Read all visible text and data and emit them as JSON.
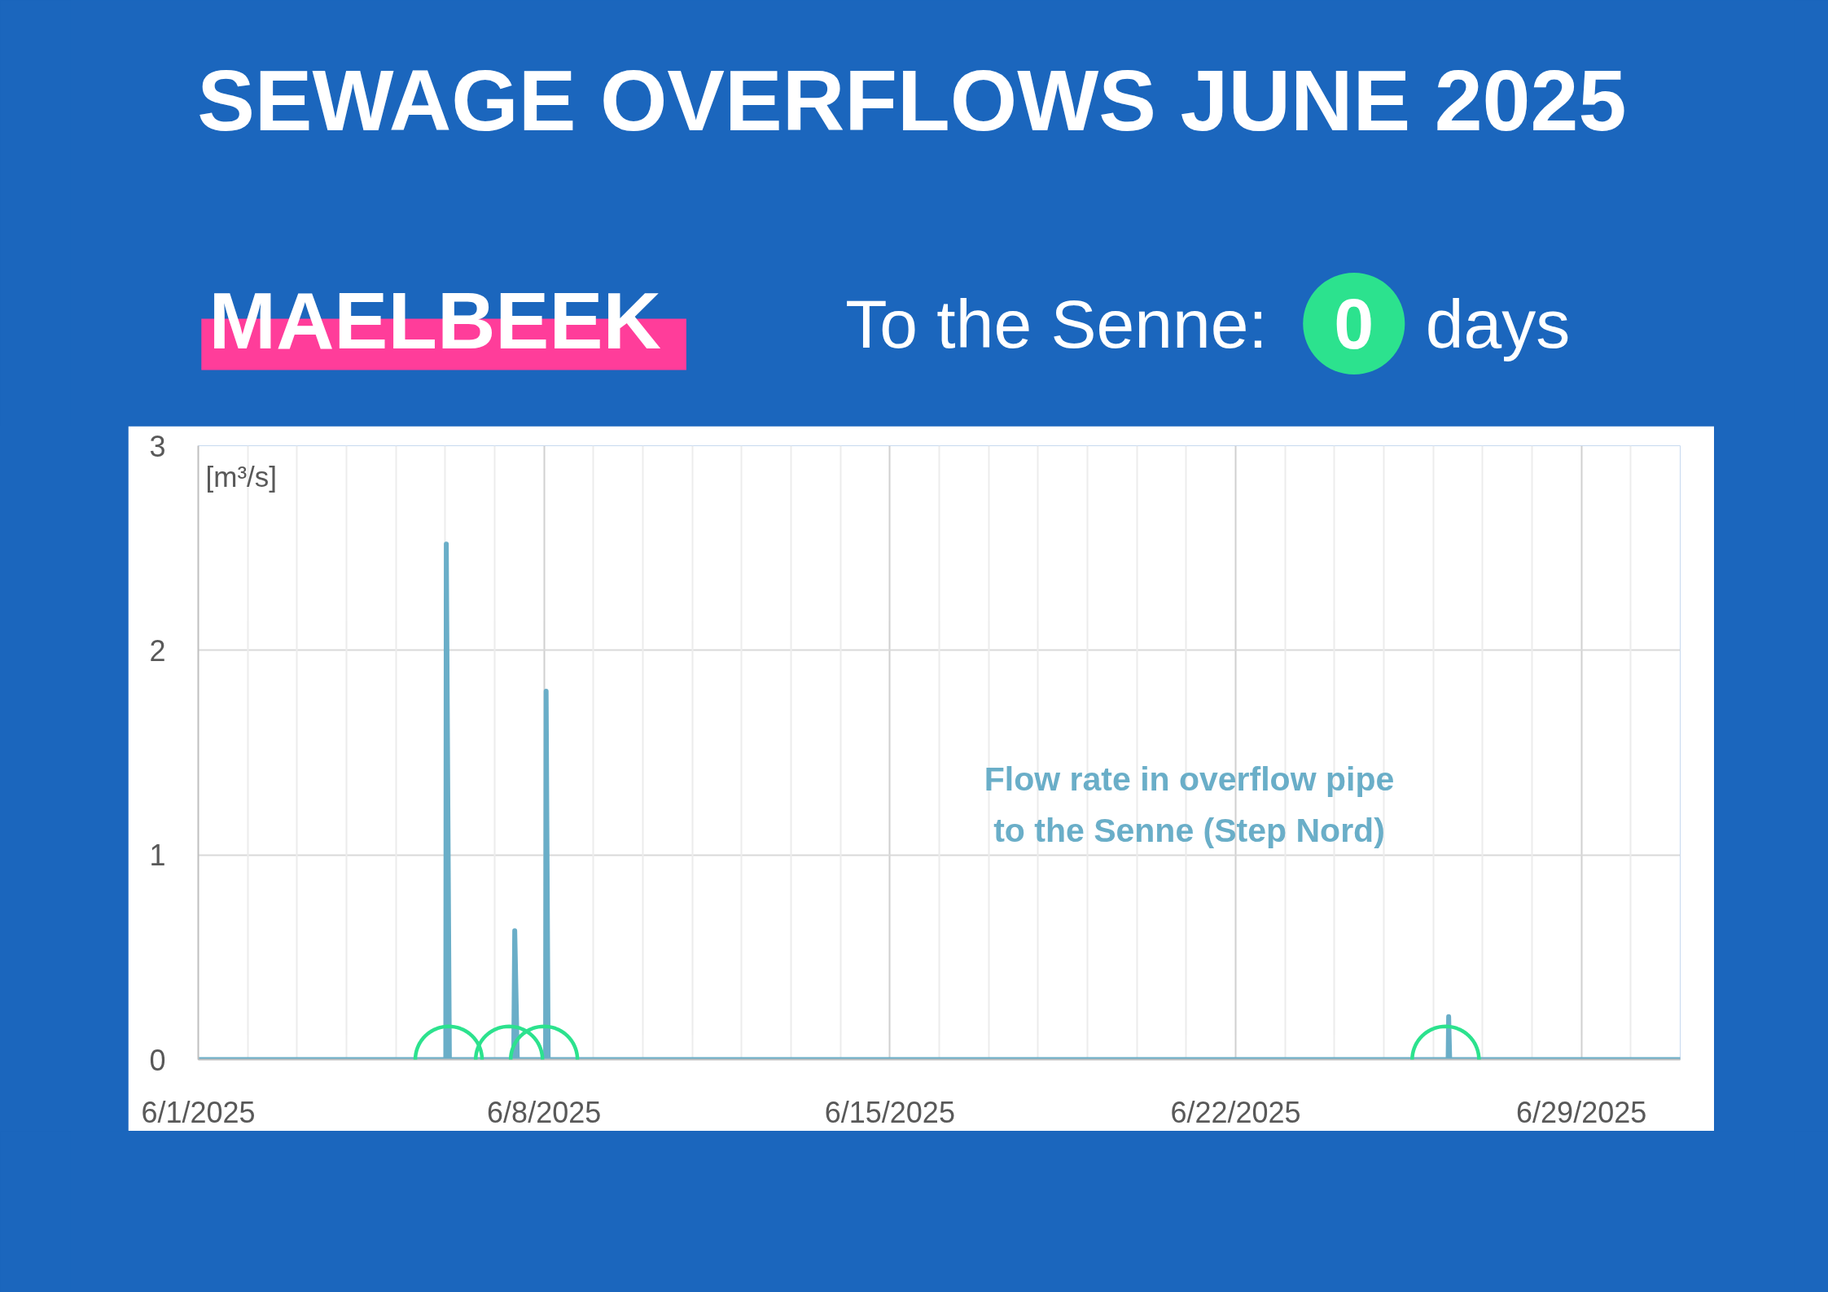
{
  "chart_data": {
    "type": "line",
    "title": "SEWAGE OVERFLOWS JUNE 2025",
    "subtitle": "MAELBEEK",
    "annotations": [
      "To the Senne:",
      "0",
      "days"
    ],
    "ylabel": "[m³/s]",
    "xlim": [
      "2025-06-01",
      "2025-07-01"
    ],
    "xticks": [
      {
        "value": "2025-06-01",
        "label": "6/1/2025"
      },
      {
        "value": "2025-06-02",
        "label": null
      },
      {
        "value": "2025-06-03",
        "label": null
      },
      {
        "value": "2025-06-04",
        "label": null
      },
      {
        "value": "2025-06-05",
        "label": null
      },
      {
        "value": "2025-06-06",
        "label": null
      },
      {
        "value": "2025-06-07",
        "label": null
      },
      {
        "value": "2025-06-08",
        "label": "6/8/2025"
      },
      {
        "value": "2025-06-09",
        "label": null
      },
      {
        "value": "2025-06-10",
        "label": null
      },
      {
        "value": "2025-06-11",
        "label": null
      },
      {
        "value": "2025-06-12",
        "label": null
      },
      {
        "value": "2025-06-13",
        "label": null
      },
      {
        "value": "2025-06-14",
        "label": null
      },
      {
        "value": "2025-06-15",
        "label": "6/15/2025"
      },
      {
        "value": "2025-06-16",
        "label": null
      },
      {
        "value": "2025-06-17",
        "label": null
      },
      {
        "value": "2025-06-18",
        "label": null
      },
      {
        "value": "2025-06-19",
        "label": null
      },
      {
        "value": "2025-06-20",
        "label": null
      },
      {
        "value": "2025-06-21",
        "label": null
      },
      {
        "value": "2025-06-22",
        "label": "6/22/2025"
      },
      {
        "value": "2025-06-23",
        "label": null
      },
      {
        "value": "2025-06-24",
        "label": null
      },
      {
        "value": "2025-06-25",
        "label": null
      },
      {
        "value": "2025-06-26",
        "label": null
      },
      {
        "value": "2025-06-27",
        "label": null
      },
      {
        "value": "2025-06-28",
        "label": null
      },
      {
        "value": "2025-06-29",
        "label": "6/29/2025"
      },
      {
        "value": "2025-06-30",
        "label": null
      }
    ],
    "ylim": [
      0,
      3
    ],
    "yticks": [
      0,
      1,
      2,
      3
    ],
    "grid": true,
    "series": [
      {
        "name": "Flow rate in overflow pipe\nto the Senne (Step Nord)",
        "color": "#6aaec8",
        "x": [
          "2025-06-01T00:00",
          "2025-06-06T00:15",
          "2025-06-06T00:30",
          "2025-06-06T02:00",
          "2025-06-07T09:15",
          "2025-06-07T09:45",
          "2025-06-07T11:00",
          "2025-06-08T00:45",
          "2025-06-08T01:00",
          "2025-06-08T02:00",
          "2025-06-26T07:15",
          "2025-06-26T07:30",
          "2025-06-26T08:00",
          "2025-07-01T00:00"
        ],
        "values": [
          0,
          0,
          2.52,
          0,
          0,
          0.63,
          0,
          0,
          1.8,
          0,
          0,
          0.21,
          0,
          0
        ]
      },
      {
        "type": "scatter",
        "marker": "circle",
        "color": "#2ce28e",
        "x": [
          "2025-06-06T01:40",
          "2025-06-07T07:00",
          "2025-06-08T00:00",
          "2025-06-26T06:00"
        ],
        "values": [
          0,
          0,
          0,
          0
        ]
      }
    ]
  }
}
